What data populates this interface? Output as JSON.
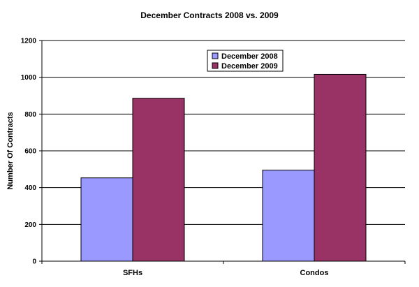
{
  "chart_data": {
    "type": "bar",
    "title": "December Contracts 2008 vs. 2009",
    "xlabel": "",
    "ylabel": "Number Of Contracts",
    "categories": [
      "SFHs",
      "Condos"
    ],
    "series": [
      {
        "name": "December 2008",
        "values": [
          453,
          495
        ],
        "color": "#9999ff"
      },
      {
        "name": "December 2009",
        "values": [
          886,
          1016
        ],
        "color": "#993366"
      }
    ],
    "ylim": [
      0,
      1200
    ],
    "yticks": [
      0,
      200,
      400,
      600,
      800,
      1000,
      1200
    ],
    "grid": true,
    "legend": "top-center"
  }
}
